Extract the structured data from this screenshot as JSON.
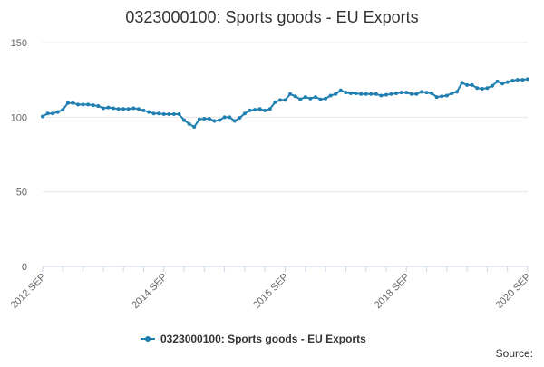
{
  "chart_data": {
    "type": "line",
    "title": "0323000100: Sports goods - EU Exports",
    "xlabel": "",
    "ylabel": "",
    "ylim": [
      0,
      150
    ],
    "yticks": [
      "0",
      "50",
      "100",
      "150"
    ],
    "xticks": [
      "2012 SEP",
      "2014 SEP",
      "2016 SEP",
      "2018 SEP",
      "2020 SEP"
    ],
    "grid": true,
    "legend_position": "bottom-center",
    "series": [
      {
        "name": "0323000100: Sports goods - EU Exports",
        "color": "#1f7fb0",
        "start": "2012 SEP",
        "frequency": "monthly",
        "values": [
          100.5,
          102.5,
          102.5,
          103.5,
          105.0,
          109.5,
          109.5,
          108.5,
          108.5,
          108.5,
          108.0,
          107.5,
          106.0,
          106.5,
          106.0,
          105.5,
          105.5,
          105.5,
          106.0,
          105.5,
          104.5,
          103.5,
          102.5,
          102.5,
          102.0,
          102.0,
          102.0,
          102.0,
          98.0,
          95.5,
          93.5,
          98.5,
          99.0,
          99.0,
          97.5,
          98.0,
          100.0,
          100.0,
          97.5,
          99.5,
          102.5,
          104.5,
          105.0,
          105.5,
          104.5,
          105.5,
          110.0,
          111.5,
          111.5,
          115.5,
          114.0,
          112.0,
          113.5,
          112.5,
          113.5,
          112.0,
          112.5,
          114.5,
          115.5,
          118.0,
          116.5,
          116.0,
          116.0,
          115.5,
          115.5,
          115.5,
          115.5,
          114.5,
          115.0,
          115.5,
          116.0,
          116.5,
          116.5,
          115.5,
          115.5,
          117.0,
          116.5,
          116.0,
          113.5,
          114.0,
          114.5,
          116.0,
          117.0,
          123.0,
          121.5,
          121.5,
          119.5,
          119.0,
          119.5,
          121.0,
          124.0,
          122.5,
          123.5,
          124.5,
          125.0,
          125.0,
          125.5
        ]
      }
    ]
  },
  "source_label": "Source:"
}
